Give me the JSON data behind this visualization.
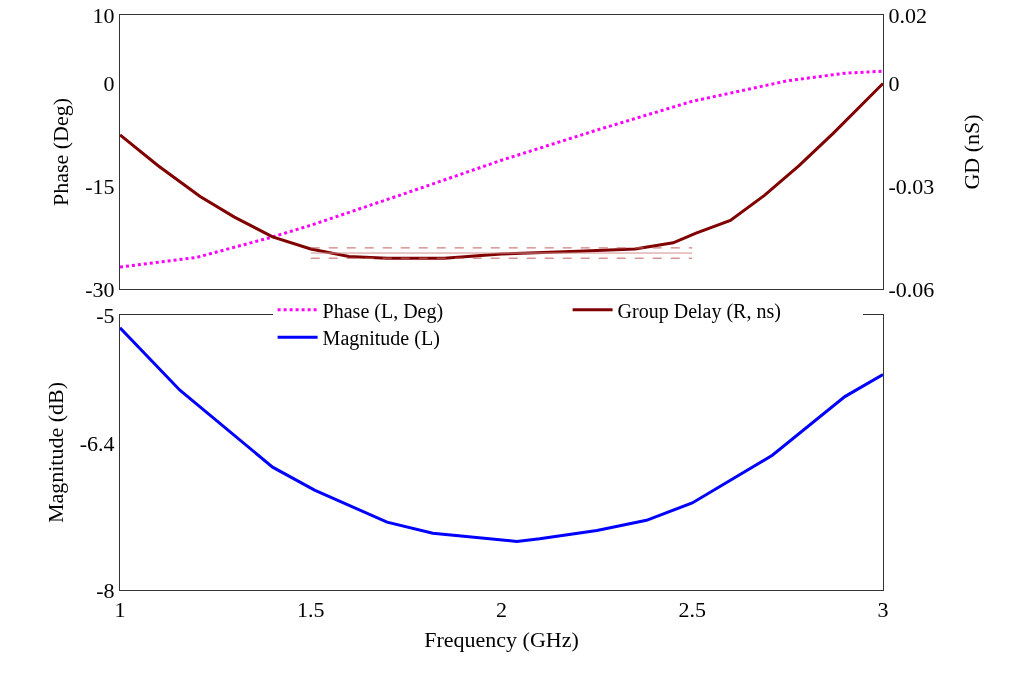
{
  "chart_data": [
    {
      "type": "line",
      "ylabel": "Phase (Deg)",
      "y2label": "GD (nS)",
      "xlim": [
        1,
        3
      ],
      "ylim": [
        -30,
        10
      ],
      "yticks": [
        -30,
        -15,
        0,
        10
      ],
      "y2lim": [
        -0.06,
        0.02
      ],
      "y2ticks": [
        -0.06,
        -0.03,
        0,
        0.02
      ],
      "tick_labels": "y",
      "legend": "bottom",
      "series": [
        {
          "name": "Phase (L, Deg)",
          "color": "#ff00ff",
          "line_style": "dotted",
          "x": [
            1.0,
            1.2,
            1.4,
            1.5,
            1.75,
            2.0,
            2.25,
            2.5,
            2.75,
            2.9,
            3.0
          ],
          "values": [
            -26.8,
            -25.4,
            -22.4,
            -20.7,
            -16,
            -11.2,
            -6.8,
            -2.6,
            0.4,
            1.5,
            1.8
          ]
        },
        {
          "name": "Group Delay (R, ns)",
          "color": "#800000",
          "axis": "y2",
          "x": [
            1.0,
            1.1,
            1.21,
            1.3,
            1.4,
            1.5,
            1.6,
            1.7,
            1.85,
            2.0,
            2.2,
            2.35,
            2.45,
            2.51,
            2.6,
            2.69,
            2.78,
            2.87,
            3.0
          ],
          "values": [
            -0.015,
            -0.024,
            -0.033,
            -0.039,
            -0.0448,
            -0.0483,
            -0.0505,
            -0.051,
            -0.051,
            -0.0498,
            -0.049,
            -0.0483,
            -0.0465,
            -0.0437,
            -0.04,
            -0.0326,
            -0.024,
            -0.0145,
            0.0
          ]
        },
        {
          "color": "#c06060",
          "axis": "y2",
          "line_style": "dashed",
          "x": [
            1.5,
            2.5
          ],
          "values": [
            -0.048,
            -0.048
          ]
        },
        {
          "color": "#d09090",
          "axis": "y2",
          "line_style": "solid",
          "x": [
            1.5,
            2.5
          ],
          "values": [
            -0.0495,
            -0.0495
          ]
        },
        {
          "color": "#c06060",
          "axis": "y2",
          "line_style": "dashed",
          "x": [
            1.5,
            2.5
          ],
          "values": [
            -0.051,
            -0.051
          ]
        }
      ]
    },
    {
      "type": "line",
      "xlabel": "Frequency (GHz)",
      "ylabel": "Magnitude (dB)",
      "xlim": [
        1,
        3
      ],
      "xticks": [
        1,
        1.5,
        2,
        2.5,
        3
      ],
      "ylim": [
        -8,
        -5
      ],
      "yticks": [
        -8,
        -6.4,
        -5
      ],
      "legend": "top left",
      "series": [
        {
          "name": "Magnitude (L)",
          "color": "#0000ff",
          "x": [
            1.0,
            1.157,
            1.4,
            1.51,
            1.7,
            1.82,
            2.04,
            2.1,
            2.25,
            2.38,
            2.5,
            2.71,
            2.9,
            3.0
          ],
          "values": [
            -5.14,
            -5.82,
            -6.66,
            -6.91,
            -7.26,
            -7.38,
            -7.47,
            -7.44,
            -7.35,
            -7.24,
            -7.05,
            -6.53,
            -5.89,
            -5.65
          ]
        }
      ]
    }
  ]
}
